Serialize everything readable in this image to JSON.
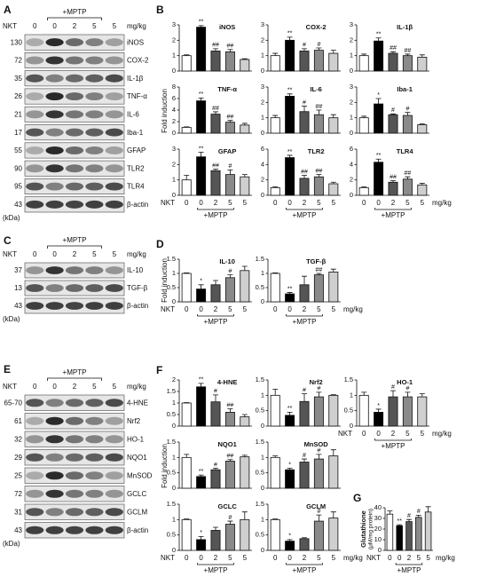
{
  "panel_labels": [
    "A",
    "B",
    "C",
    "D",
    "E",
    "F",
    "G"
  ],
  "x_axis": {
    "label": "NKT",
    "categories": [
      "0",
      "0",
      "2",
      "5",
      "5"
    ],
    "unit": "mg/kg",
    "group_label": "+MPTP"
  },
  "kda_label": "(kDa)",
  "y_label": "Fold induction",
  "bar_colors": [
    "#ffffff",
    "#000000",
    "#555555",
    "#8a8a8a",
    "#cfcfcf"
  ],
  "blots": [
    {
      "rows": [
        {
          "kda": "130",
          "protein": "iNOS"
        },
        {
          "kda": "72",
          "protein": "COX-2"
        },
        {
          "kda": "35",
          "protein": "IL-1β"
        },
        {
          "kda": "26",
          "protein": "TNF-α"
        },
        {
          "kda": "21",
          "protein": "IL-6"
        },
        {
          "kda": "17",
          "protein": "Iba-1"
        },
        {
          "kda": "55",
          "protein": "GFAP"
        },
        {
          "kda": "90",
          "protein": "TLR2"
        },
        {
          "kda": "95",
          "protein": "TLR4"
        },
        {
          "kda": "43",
          "protein": "β-actin"
        }
      ]
    },
    {
      "rows": [
        {
          "kda": "37",
          "protein": "IL-10"
        },
        {
          "kda": "13",
          "protein": "TGF-β"
        },
        {
          "kda": "43",
          "protein": "β-actin"
        }
      ]
    },
    {
      "rows": [
        {
          "kda": "65-70",
          "protein": "4-HNE"
        },
        {
          "kda": "61",
          "protein": "Nrf2"
        },
        {
          "kda": "32",
          "protein": "HO-1"
        },
        {
          "kda": "29",
          "protein": "NQO1"
        },
        {
          "kda": "25",
          "protein": "MnSOD"
        },
        {
          "kda": "72",
          "protein": "GCLC"
        },
        {
          "kda": "31",
          "protein": "GCLM"
        },
        {
          "kda": "43",
          "protein": "β-actin"
        }
      ]
    }
  ],
  "chart_data": [
    {
      "type": "bar",
      "title": "iNOS",
      "values": [
        1,
        2.85,
        1.3,
        1.25,
        0.75
      ],
      "errors": [
        0.05,
        0.1,
        0.15,
        0.15,
        0.05
      ],
      "annotations": [
        null,
        "**",
        "##",
        "##",
        null
      ],
      "ylim": [
        0,
        3
      ],
      "yticks": [
        0,
        1,
        2,
        3
      ]
    },
    {
      "type": "bar",
      "title": "COX-2",
      "values": [
        1,
        2.0,
        1.3,
        1.35,
        1.15
      ],
      "errors": [
        0.15,
        0.2,
        0.15,
        0.15,
        0.2
      ],
      "annotations": [
        null,
        "**",
        "#",
        "#",
        null
      ],
      "ylim": [
        0,
        3
      ],
      "yticks": [
        0,
        1,
        2,
        3
      ]
    },
    {
      "type": "bar",
      "title": "IL-1β",
      "values": [
        1,
        1.95,
        1.15,
        1.0,
        0.9
      ],
      "errors": [
        0.1,
        0.2,
        0.1,
        0.1,
        0.15
      ],
      "annotations": [
        null,
        "**",
        "##",
        "##",
        null
      ],
      "ylim": [
        0,
        3
      ],
      "yticks": [
        0,
        1,
        2,
        3
      ]
    },
    {
      "type": "bar",
      "title": "TNF-α",
      "values": [
        1,
        5.6,
        3.3,
        1.9,
        1.4
      ],
      "errors": [
        0.1,
        0.5,
        0.4,
        0.3,
        0.3
      ],
      "annotations": [
        null,
        "**",
        "##",
        "##",
        null
      ],
      "ylim": [
        0,
        8
      ],
      "yticks": [
        0,
        2,
        4,
        6,
        8
      ]
    },
    {
      "type": "bar",
      "title": "IL-6",
      "values": [
        1,
        2.4,
        1.4,
        1.2,
        1.0
      ],
      "errors": [
        0.15,
        0.15,
        0.35,
        0.3,
        0.2
      ],
      "annotations": [
        null,
        "**",
        "#",
        "##",
        null
      ],
      "ylim": [
        0,
        3
      ],
      "yticks": [
        0,
        1,
        2,
        3
      ]
    },
    {
      "type": "bar",
      "title": "Iba-1",
      "values": [
        1,
        1.9,
        1.2,
        1.15,
        0.55
      ],
      "errors": [
        0.1,
        0.35,
        0.05,
        0.2,
        0.05
      ],
      "annotations": [
        null,
        "*",
        "#",
        "#",
        null
      ],
      "ylim": [
        0,
        3
      ],
      "yticks": [
        0,
        1,
        2,
        3
      ]
    },
    {
      "type": "bar",
      "title": "GFAP",
      "values": [
        1,
        2.5,
        1.6,
        1.35,
        1.2
      ],
      "errors": [
        0.3,
        0.3,
        0.1,
        0.3,
        0.15
      ],
      "annotations": [
        null,
        "**",
        "##",
        "#",
        null
      ],
      "ylim": [
        0,
        3
      ],
      "yticks": [
        0,
        1,
        2,
        3
      ]
    },
    {
      "type": "bar",
      "title": "TLR2",
      "values": [
        1,
        4.9,
        2.2,
        2.4,
        1.5
      ],
      "errors": [
        0.1,
        0.3,
        0.4,
        0.3,
        0.2
      ],
      "annotations": [
        null,
        "**",
        "##",
        "##",
        null
      ],
      "ylim": [
        0,
        6
      ],
      "yticks": [
        0,
        2,
        4,
        6
      ]
    },
    {
      "type": "bar",
      "title": "TLR4",
      "values": [
        1,
        4.3,
        1.7,
        2.1,
        1.35
      ],
      "errors": [
        0.1,
        0.4,
        0.2,
        0.3,
        0.2
      ],
      "annotations": [
        null,
        "**",
        "##",
        "##",
        null
      ],
      "ylim": [
        0,
        6
      ],
      "yticks": [
        0,
        2,
        4,
        6
      ]
    },
    {
      "type": "bar",
      "title": "IL-10",
      "values": [
        1,
        0.45,
        0.6,
        0.85,
        1.1
      ],
      "errors": [
        0.02,
        0.15,
        0.15,
        0.1,
        0.15
      ],
      "annotations": [
        null,
        "*",
        null,
        "#",
        null
      ],
      "ylim": [
        0,
        1.5
      ],
      "yticks": [
        0,
        0.5,
        1,
        1.5
      ]
    },
    {
      "type": "bar",
      "title": "TGF-β",
      "values": [
        1,
        0.28,
        0.6,
        0.95,
        1.05
      ],
      "errors": [
        0.02,
        0.05,
        0.3,
        0.05,
        0.1
      ],
      "annotations": [
        null,
        "**",
        null,
        "##",
        null
      ],
      "ylim": [
        0,
        1.5
      ],
      "yticks": [
        0,
        0.5,
        1,
        1.5
      ]
    },
    {
      "type": "bar",
      "title": "4-HNE",
      "values": [
        1,
        1.7,
        1.05,
        0.6,
        0.4
      ],
      "errors": [
        0.02,
        0.15,
        0.3,
        0.15,
        0.1
      ],
      "annotations": [
        null,
        "**",
        "#",
        "##",
        null
      ],
      "ylim": [
        0,
        2
      ],
      "yticks": [
        0,
        0.5,
        1,
        1.5,
        2
      ]
    },
    {
      "type": "bar",
      "title": "Nrf2",
      "values": [
        1,
        0.35,
        0.8,
        0.95,
        1.0
      ],
      "errors": [
        0.2,
        0.1,
        0.25,
        0.15,
        0.02
      ],
      "annotations": [
        null,
        "**",
        "#",
        "#",
        null
      ],
      "ylim": [
        0,
        1.5
      ],
      "yticks": [
        0,
        0.5,
        1,
        1.5
      ]
    },
    {
      "type": "bar",
      "title": "HO-1",
      "values": [
        1,
        0.45,
        0.95,
        0.95,
        0.95
      ],
      "errors": [
        0.1,
        0.1,
        0.2,
        0.15,
        0.1
      ],
      "annotations": [
        null,
        "*",
        "#",
        "#",
        null
      ],
      "ylim": [
        0,
        1.5
      ],
      "yticks": [
        0,
        0.5,
        1,
        1.5
      ]
    },
    {
      "type": "bar",
      "title": "NQO1",
      "values": [
        1,
        0.38,
        0.6,
        0.88,
        1.02
      ],
      "errors": [
        0.1,
        0.05,
        0.05,
        0.05,
        0.05
      ],
      "annotations": [
        null,
        "**",
        "#",
        "##",
        null
      ],
      "ylim": [
        0,
        1.5
      ],
      "yticks": [
        0,
        0.5,
        1,
        1.5
      ]
    },
    {
      "type": "bar",
      "title": "MnSOD",
      "values": [
        1,
        0.6,
        0.85,
        0.95,
        1.05
      ],
      "errors": [
        0.05,
        0.05,
        0.1,
        0.15,
        0.2
      ],
      "annotations": [
        null,
        "*",
        "#",
        "#",
        null
      ],
      "ylim": [
        0,
        1.5
      ],
      "yticks": [
        0,
        0.5,
        1,
        1.5
      ]
    },
    {
      "type": "bar",
      "title": "GCLC",
      "values": [
        1,
        0.35,
        0.65,
        0.85,
        1.0
      ],
      "errors": [
        0.02,
        0.1,
        0.1,
        0.1,
        0.25
      ],
      "annotations": [
        null,
        "*",
        null,
        "#",
        null
      ],
      "ylim": [
        0,
        1.5
      ],
      "yticks": [
        0,
        0.5,
        1,
        1.5
      ]
    },
    {
      "type": "bar",
      "title": "GCLM",
      "values": [
        1,
        0.3,
        0.38,
        0.95,
        1.05
      ],
      "errors": [
        0.02,
        0.05,
        0.03,
        0.2,
        0.2
      ],
      "annotations": [
        null,
        "*",
        null,
        "#",
        null
      ],
      "ylim": [
        0,
        1.5
      ],
      "yticks": [
        0,
        0.5,
        1,
        1.5
      ]
    },
    {
      "type": "bar",
      "y_label": "Glutathione",
      "y_label_unit": "(μM/mg protein)",
      "values": [
        34,
        23,
        27,
        31,
        36
      ],
      "errors": [
        3,
        1,
        2,
        2,
        5
      ],
      "annotations": [
        null,
        "**",
        "#",
        "#",
        null
      ],
      "ylim": [
        0,
        40
      ],
      "yticks": [
        0,
        10,
        20,
        30,
        40
      ]
    }
  ]
}
